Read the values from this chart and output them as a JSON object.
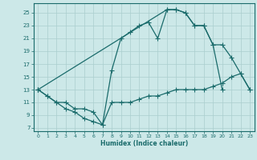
{
  "xlabel": "Humidex (Indice chaleur)",
  "xlim": [
    -0.5,
    23.5
  ],
  "ylim": [
    6.5,
    26.5
  ],
  "yticks": [
    7,
    9,
    11,
    13,
    15,
    17,
    19,
    21,
    23,
    25
  ],
  "xticks": [
    0,
    1,
    2,
    3,
    4,
    5,
    6,
    7,
    8,
    9,
    10,
    11,
    12,
    13,
    14,
    15,
    16,
    17,
    18,
    19,
    20,
    21,
    22,
    23
  ],
  "bg_color": "#cce8e8",
  "line_color": "#1a6b6b",
  "grid_color": "#aacece",
  "curve1_x": [
    0,
    1,
    2,
    3,
    4,
    5,
    6,
    7,
    8,
    9,
    10,
    11,
    12,
    13,
    14,
    15,
    16,
    17,
    18,
    19,
    20
  ],
  "curve1_y": [
    13,
    12,
    11,
    10,
    9.5,
    8.5,
    8,
    7.5,
    16,
    21,
    22,
    23,
    23.5,
    21,
    25.5,
    25.5,
    25,
    23,
    23,
    20,
    13
  ],
  "curve2_x": [
    0,
    1,
    2,
    3,
    4,
    5,
    6,
    7,
    8,
    9,
    10,
    11,
    12,
    13,
    14,
    15,
    16,
    17,
    18,
    19,
    20,
    21,
    22,
    23
  ],
  "curve2_y": [
    13,
    12,
    11,
    11,
    10,
    10,
    9.5,
    7.5,
    11,
    11,
    11,
    11.5,
    12,
    12,
    12.5,
    13,
    13,
    13,
    13,
    13.5,
    14,
    15,
    15.5,
    13
  ],
  "curve3_x": [
    0,
    14,
    15,
    16,
    17,
    18,
    19,
    20,
    21,
    22,
    23
  ],
  "curve3_y": [
    13,
    25.5,
    25.5,
    25,
    23,
    23,
    20,
    20,
    18,
    15.5,
    13
  ]
}
